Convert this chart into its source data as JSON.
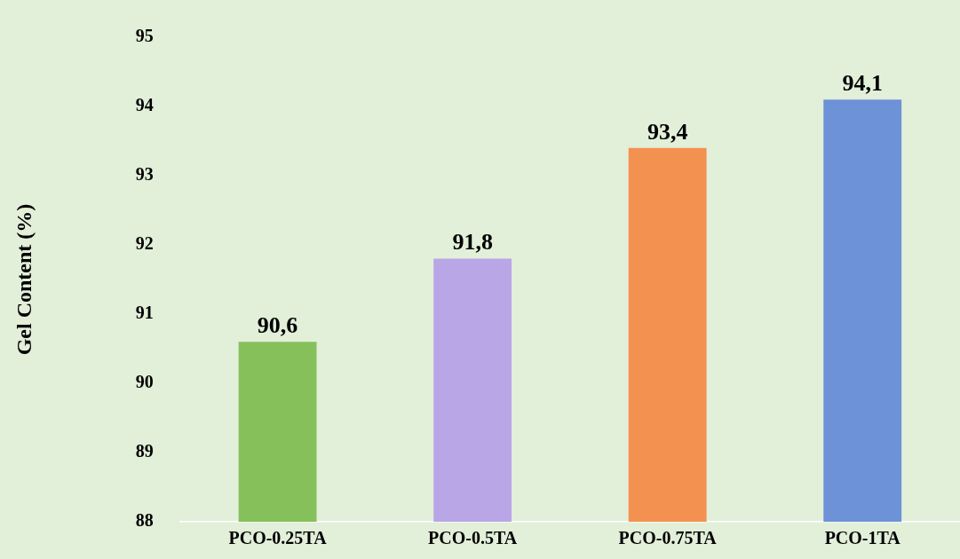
{
  "chart_data": {
    "type": "bar",
    "ylabel": "Gel Content (%)",
    "categories": [
      "PCO-0.25TA",
      "PCO-0.5TA",
      "PCO-0.75TA",
      "PCO-1TA"
    ],
    "values": [
      90.6,
      91.8,
      93.4,
      94.1
    ],
    "colors": [
      "#86c05a",
      "#b9a6e6",
      "#f39150",
      "#6e92d8"
    ],
    "value_labels": [
      "90,6",
      "91,8",
      "93,4",
      "94,1"
    ],
    "ylim": [
      88,
      95
    ],
    "yticks": [
      88,
      89,
      90,
      91,
      92,
      93,
      94,
      95
    ],
    "grid": false,
    "legend": false
  }
}
